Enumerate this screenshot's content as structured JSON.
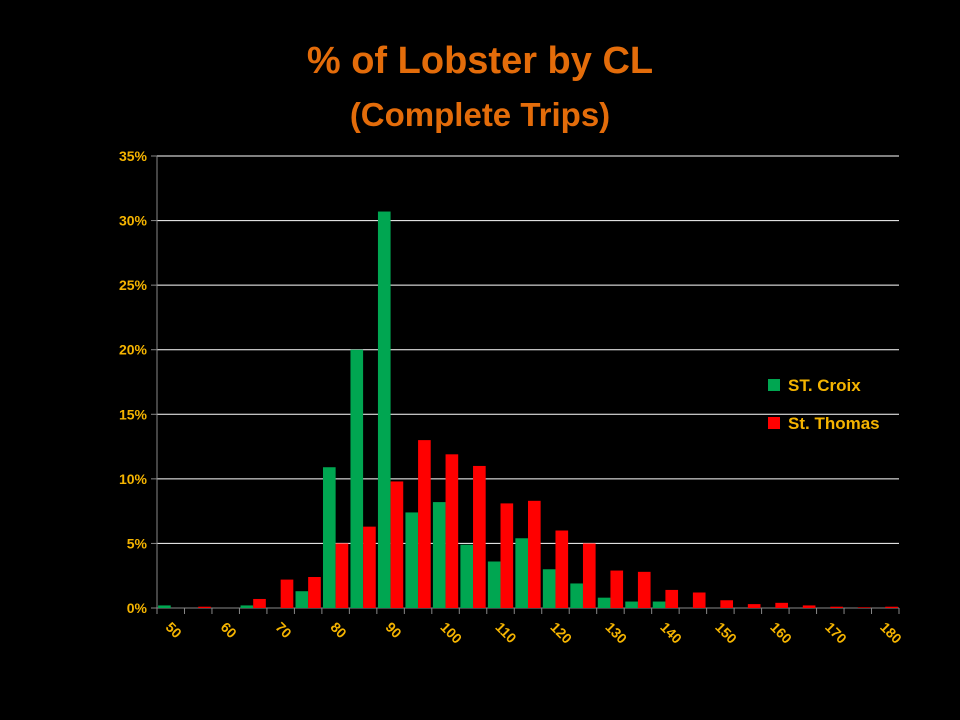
{
  "chart_data": {
    "type": "bar",
    "title": "% of Lobster by CL",
    "subtitle": "(Complete Trips)",
    "xlabel": "",
    "ylabel": "",
    "ylim": [
      0,
      35
    ],
    "yticks": [
      "0%",
      "5%",
      "10%",
      "15%",
      "20%",
      "25%",
      "30%",
      "35%"
    ],
    "xtick_labels": [
      "50",
      "60",
      "70",
      "80",
      "90",
      "100",
      "110",
      "120",
      "130",
      "140",
      "150",
      "160",
      "170",
      "180"
    ],
    "categories": [
      50,
      55,
      60,
      65,
      70,
      75,
      80,
      85,
      90,
      95,
      100,
      105,
      110,
      115,
      120,
      125,
      130,
      135,
      140,
      145,
      150,
      155,
      160,
      165,
      170,
      175,
      180
    ],
    "grid": true,
    "legend_position": "right",
    "series": [
      {
        "name": "ST. Croix",
        "color": "#00A651",
        "values": [
          0.2,
          0,
          0,
          0.2,
          0,
          1.3,
          10.9,
          20.0,
          30.7,
          7.4,
          8.2,
          4.9,
          3.6,
          5.4,
          3.0,
          1.9,
          0.8,
          0.5,
          0.5,
          0,
          0,
          0,
          0,
          0,
          0,
          0,
          0
        ]
      },
      {
        "name": "St. Thomas",
        "color": "#FF0000",
        "values": [
          0,
          0.1,
          0,
          0.7,
          2.2,
          2.4,
          5.0,
          6.3,
          9.8,
          13.0,
          11.9,
          11.0,
          8.1,
          8.3,
          6.0,
          5.0,
          2.9,
          2.8,
          1.4,
          1.2,
          0.6,
          0.3,
          0.4,
          0.2,
          0.1,
          0.05,
          0.1
        ]
      }
    ]
  }
}
